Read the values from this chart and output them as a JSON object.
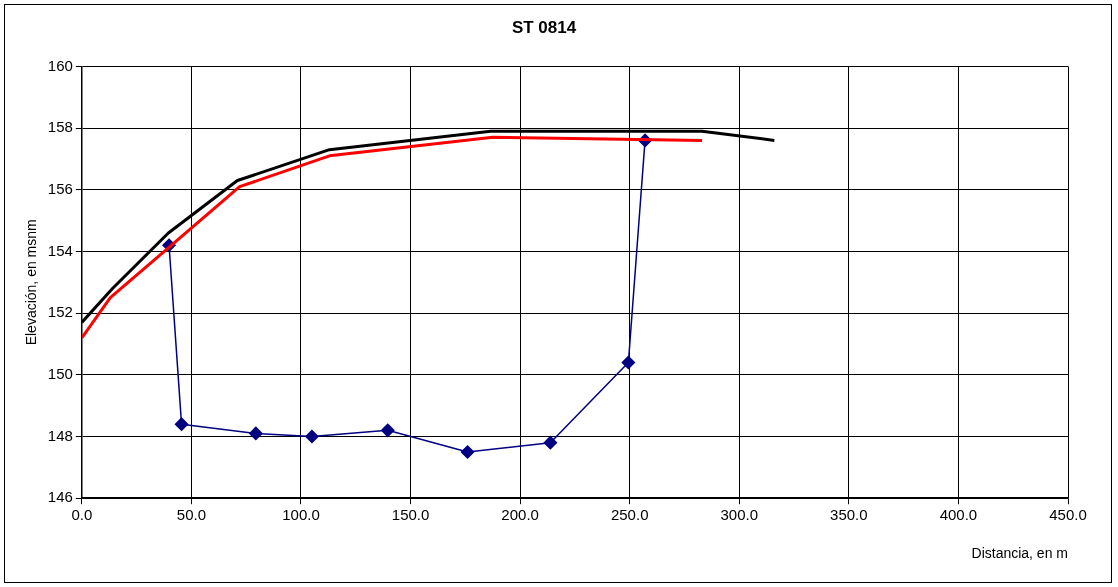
{
  "chart_data": {
    "type": "line",
    "title": "ST 0814",
    "xlabel": "Distancia, en m",
    "ylabel": "Elevación, en msnm",
    "xlim": [
      0,
      450
    ],
    "xticks": [
      {
        "value": 0,
        "label": "0.0"
      },
      {
        "value": 50,
        "label": "50.0"
      },
      {
        "value": 100,
        "label": "100.0"
      },
      {
        "value": 150,
        "label": "150.0"
      },
      {
        "value": 200,
        "label": "200.0"
      },
      {
        "value": 250,
        "label": "250.0"
      },
      {
        "value": 300,
        "label": "300.0"
      },
      {
        "value": 350,
        "label": "350.0"
      },
      {
        "value": 400,
        "label": "400.0"
      },
      {
        "value": 450,
        "label": "450.0"
      }
    ],
    "ylim": [
      146,
      160
    ],
    "yticks": [
      146,
      148,
      150,
      152,
      154,
      156,
      158,
      160
    ],
    "grid": true,
    "legend": false,
    "series": [
      {
        "color": "#000000",
        "marker": "none",
        "x": [
          0,
          14,
          39.5,
          71,
          113,
          186.5,
          283,
          316
        ],
        "values": [
          151.7,
          152.8,
          154.6,
          156.3,
          157.3,
          157.9,
          157.9,
          157.6
        ]
      },
      {
        "color": "#ff0000",
        "marker": "none",
        "x": [
          0,
          13,
          72,
          113,
          187.5,
          283
        ],
        "values": [
          151.2,
          152.5,
          156.1,
          157.1,
          157.7,
          157.6
        ]
      },
      {
        "color": "#000080",
        "marker": "diamond",
        "x": [
          39.8,
          45.5,
          79.4,
          105,
          139.6,
          176,
          213.8,
          249.4,
          257
        ],
        "values": [
          154.2,
          148.4,
          148.1,
          148.0,
          148.2,
          147.5,
          147.8,
          150.4,
          157.6
        ]
      }
    ]
  }
}
